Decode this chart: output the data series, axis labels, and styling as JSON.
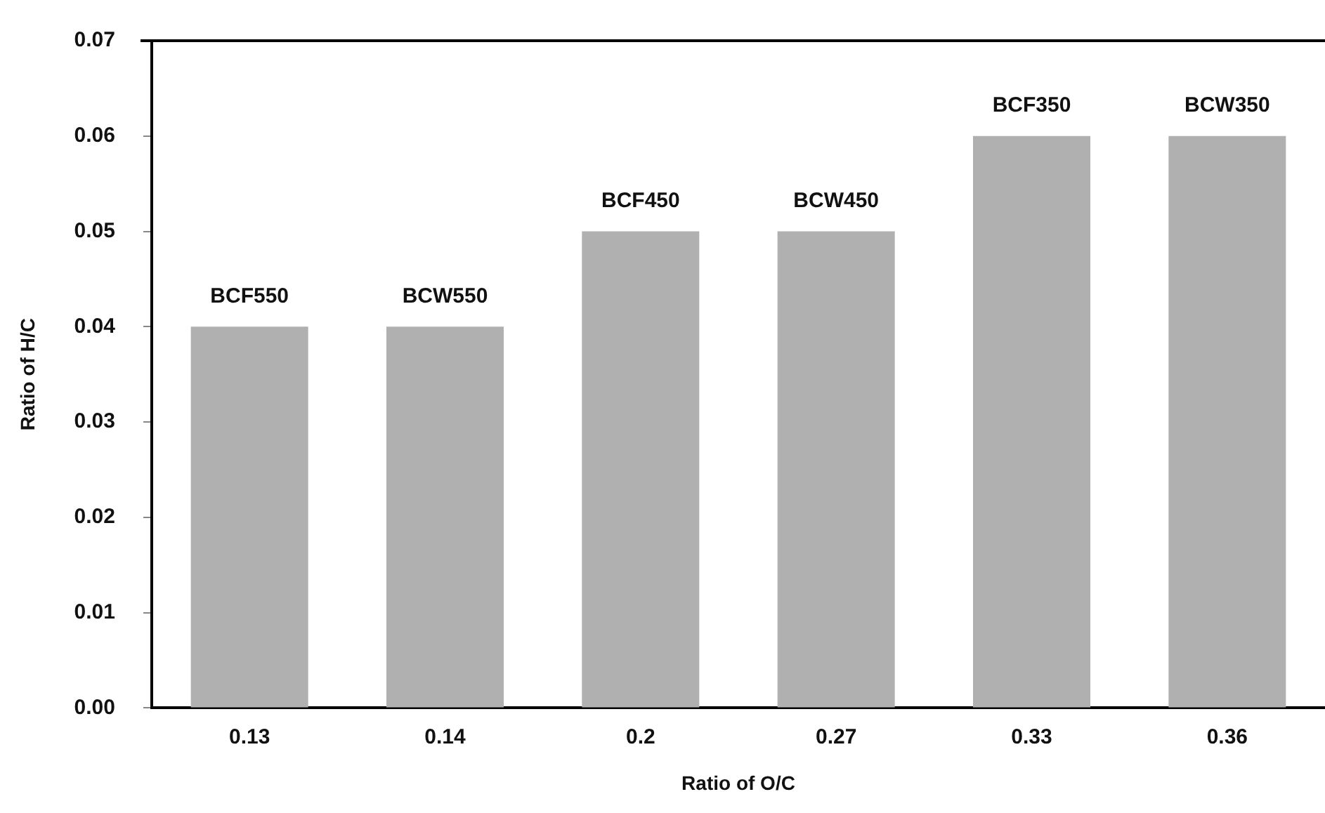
{
  "chart_data": {
    "type": "bar",
    "xlabel": "Ratio of O/C",
    "ylabel": "Ratio of H/C",
    "categories": [
      "0.13",
      "0.14",
      "0.2",
      "0.27",
      "0.33",
      "0.36"
    ],
    "values": [
      0.04,
      0.04,
      0.05,
      0.05,
      0.06,
      0.06
    ],
    "color": "#b0b0b0",
    "ylim": [
      0,
      0.07
    ],
    "yticks": [
      {
        "value": 0,
        "label": "0.00"
      },
      {
        "value": 0.01,
        "label": "0.01"
      },
      {
        "value": 0.02,
        "label": "0.02"
      },
      {
        "value": 0.03,
        "label": "0.03"
      },
      {
        "value": 0.04,
        "label": "0.04"
      },
      {
        "value": 0.05,
        "label": "0.05"
      },
      {
        "value": 0.06,
        "label": "0.06"
      },
      {
        "value": 0.07,
        "label": "0.07"
      }
    ],
    "grid": false,
    "legend": false,
    "annotations": [
      {
        "text": "BCF550",
        "x": "0.13",
        "y": 0.04
      },
      {
        "text": "BCW550",
        "x": "0.14",
        "y": 0.04
      },
      {
        "text": "BCF450",
        "x": "0.2",
        "y": 0.05
      },
      {
        "text": "BCW450",
        "x": "0.27",
        "y": 0.05
      },
      {
        "text": "BCF350",
        "x": "0.33",
        "y": 0.06
      },
      {
        "text": "BCW350",
        "x": "0.36",
        "y": 0.06
      }
    ]
  }
}
